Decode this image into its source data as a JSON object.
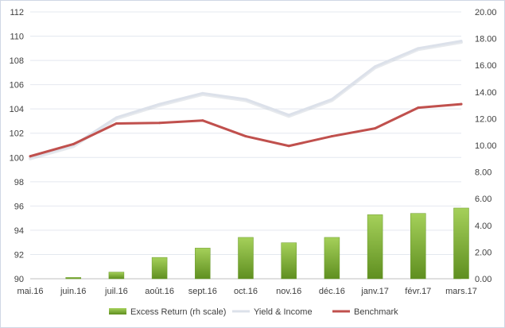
{
  "chart_data": {
    "type": "bar",
    "categories": [
      "mai.16",
      "juin.16",
      "juil.16",
      "août.16",
      "sept.16",
      "oct.16",
      "nov.16",
      "déc.16",
      "janv.17",
      "févr.17",
      "mars.17"
    ],
    "series": [
      {
        "name": "Excess Return (rh scale)",
        "type": "bar",
        "axis": "right",
        "color": "#7fb435",
        "values": [
          0.0,
          0.1,
          0.5,
          1.6,
          2.3,
          3.1,
          2.7,
          3.1,
          4.8,
          4.9,
          5.3
        ]
      },
      {
        "name": "Yield & Income",
        "type": "line",
        "axis": "left",
        "color": "#dce1ea",
        "values": [
          100.0,
          101.0,
          103.3,
          104.4,
          105.3,
          104.8,
          103.5,
          104.8,
          107.5,
          109.0,
          109.6
        ]
      },
      {
        "name": "Benchmark",
        "type": "line",
        "axis": "left",
        "color": "#c0504d",
        "values": [
          100.1,
          101.1,
          102.8,
          102.85,
          103.05,
          101.75,
          100.95,
          101.75,
          102.4,
          104.1,
          104.4
        ]
      }
    ],
    "left_axis": {
      "ylim": [
        90,
        112
      ],
      "ticks": [
        "90",
        "92",
        "94",
        "96",
        "98",
        "100",
        "102",
        "104",
        "106",
        "108",
        "110",
        "112"
      ]
    },
    "right_axis": {
      "ylim": [
        0,
        20
      ],
      "ticks": [
        "0.00",
        "2.00",
        "4.00",
        "6.00",
        "8.00",
        "10.00",
        "12.00",
        "14.00",
        "16.00",
        "18.00",
        "20.00"
      ]
    },
    "grid": "horizontal",
    "legend": "bottom",
    "title": "",
    "xlabel": "",
    "ylabel": ""
  }
}
